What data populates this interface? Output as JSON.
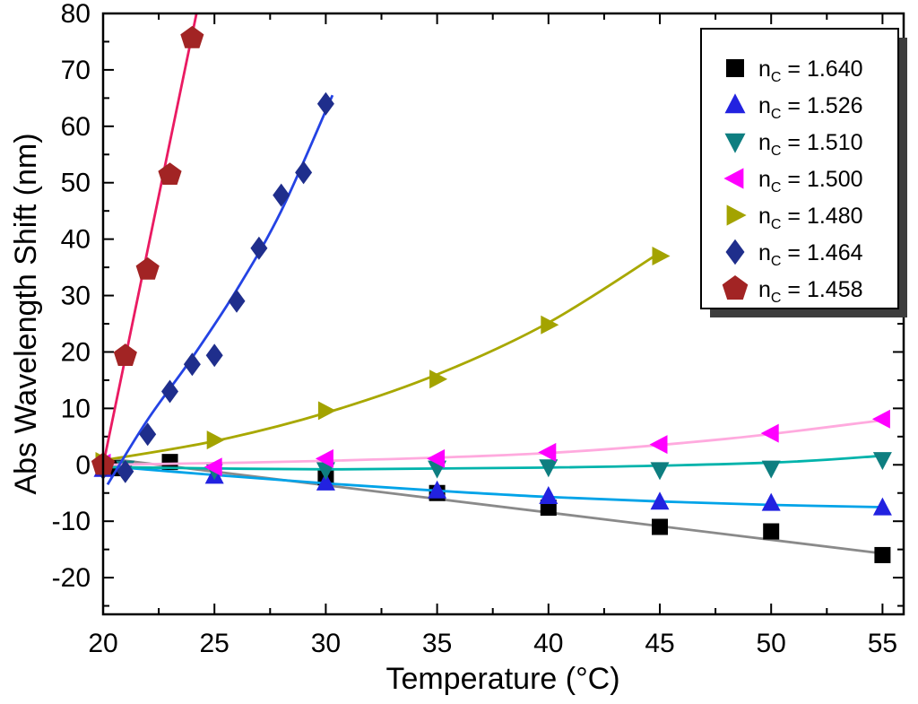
{
  "chart_data": {
    "type": "scatter",
    "title": "",
    "xlabel": "Temperature (°C)",
    "ylabel": "Abs Wavelength Shift (nm)",
    "xlim": [
      20,
      55.95
    ],
    "ylim": [
      -26.5,
      80
    ],
    "x_ticks": [
      20,
      25,
      30,
      35,
      40,
      45,
      50,
      55
    ],
    "y_ticks": [
      -20,
      -10,
      0,
      10,
      20,
      30,
      40,
      50,
      60,
      70,
      80
    ],
    "grid": false,
    "legend_position": "top-right",
    "frame_color": "#000000",
    "legend_shadow_color": "#3d3d3d",
    "series": [
      {
        "value": "1.640",
        "label": "n_C = 1.640",
        "marker": "square",
        "marker_size": 9,
        "marker_color": "#000000",
        "line_color": "#8a8a8a",
        "points": [
          [
            20.5,
            -0.6
          ],
          [
            23,
            0.5
          ],
          [
            30,
            -2.2
          ],
          [
            35,
            -5.0
          ],
          [
            40,
            -7.6
          ],
          [
            45,
            -11.0
          ],
          [
            50,
            -11.8
          ],
          [
            55,
            -16.0
          ]
        ],
        "line": [
          [
            20,
            1.2
          ],
          [
            55,
            -15.7
          ]
        ]
      },
      {
        "value": "1.526",
        "label": "n_C = 1.526",
        "marker": "triangle-up",
        "marker_size": 10,
        "marker_color": "#2222e0",
        "line_color": "#00a3e8",
        "points": [
          [
            20,
            -0.8
          ],
          [
            25,
            -2.0
          ],
          [
            30,
            -3.2
          ],
          [
            35,
            -4.6
          ],
          [
            40,
            -5.6
          ],
          [
            45,
            -6.6
          ],
          [
            50,
            -6.8
          ],
          [
            55,
            -7.6
          ]
        ],
        "line": [
          [
            20,
            -0.2
          ],
          [
            25,
            -1.8
          ],
          [
            30,
            -3.3
          ],
          [
            35,
            -4.6
          ],
          [
            40,
            -5.7
          ],
          [
            45,
            -6.5
          ],
          [
            50,
            -7.1
          ],
          [
            55,
            -7.5
          ]
        ]
      },
      {
        "value": "1.510",
        "label": "n_C = 1.510",
        "marker": "triangle-down",
        "marker_size": 10,
        "marker_color": "#0e7e80",
        "line_color": "#00b3ab",
        "points": [
          [
            20,
            -0.6
          ],
          [
            21,
            -0.6
          ],
          [
            25,
            -0.9
          ],
          [
            30,
            -0.9
          ],
          [
            35,
            -0.6
          ],
          [
            40,
            -0.4
          ],
          [
            45,
            -0.9
          ],
          [
            50,
            -0.6
          ],
          [
            55,
            0.9
          ]
        ],
        "line": [
          [
            20,
            -0.4
          ],
          [
            30,
            -0.8
          ],
          [
            40,
            -0.5
          ],
          [
            50,
            0.4
          ],
          [
            55,
            1.6
          ]
        ]
      },
      {
        "value": "1.500",
        "label": "n_C = 1.500",
        "marker": "triangle-left",
        "marker_size": 10,
        "marker_color": "#ff00ff",
        "line_color": "#ffaade",
        "points": [
          [
            20,
            0.3
          ],
          [
            25,
            -0.4
          ],
          [
            30,
            1.1
          ],
          [
            35,
            1.1
          ],
          [
            40,
            2.2
          ],
          [
            45,
            3.6
          ],
          [
            50,
            5.6
          ],
          [
            55,
            8.1
          ]
        ],
        "line": [
          [
            20,
            0.0
          ],
          [
            30,
            0.7
          ],
          [
            40,
            2.1
          ],
          [
            48,
            4.6
          ],
          [
            55,
            7.9
          ]
        ]
      },
      {
        "value": "1.480",
        "label": "n_C = 1.480",
        "marker": "triangle-right",
        "marker_size": 10,
        "marker_color": "#a3a300",
        "line_color": "#a8a800",
        "points": [
          [
            20,
            0.6
          ],
          [
            25,
            4.4
          ],
          [
            30,
            9.6
          ],
          [
            35,
            15.2
          ],
          [
            40,
            24.8
          ],
          [
            45,
            37.0
          ]
        ],
        "line": [
          [
            20,
            0.8
          ],
          [
            25,
            4.2
          ],
          [
            30,
            9.2
          ],
          [
            35,
            16.0
          ],
          [
            40,
            25.2
          ],
          [
            45,
            37.6
          ]
        ]
      },
      {
        "value": "1.464",
        "label": "n_C = 1.464",
        "marker": "diamond",
        "marker_size": 10,
        "marker_color": "#1f2e8c",
        "line_color": "#2443e4",
        "points": [
          [
            20,
            -0.6
          ],
          [
            21,
            -1.2
          ],
          [
            22,
            5.4
          ],
          [
            23,
            13.0
          ],
          [
            24,
            17.8
          ],
          [
            25,
            19.4
          ],
          [
            26,
            29.0
          ],
          [
            27,
            38.4
          ],
          [
            28,
            47.8
          ],
          [
            29,
            51.8
          ],
          [
            30,
            64.0
          ]
        ],
        "line": [
          [
            20.2,
            -3.5
          ],
          [
            22,
            8.0
          ],
          [
            24,
            19.0
          ],
          [
            26,
            31.0
          ],
          [
            28,
            45.0
          ],
          [
            30.3,
            65.5
          ]
        ]
      },
      {
        "value": "1.458",
        "label": "n_C = 1.458",
        "marker": "pentagon",
        "marker_size": 11,
        "marker_color": "#a22424",
        "line_color": "#ea1a62",
        "points": [
          [
            20,
            0.0
          ],
          [
            21,
            19.3
          ],
          [
            22,
            34.6
          ],
          [
            23,
            51.4
          ],
          [
            24,
            75.6
          ]
        ],
        "line": [
          [
            19.9,
            -2.0
          ],
          [
            24.35,
            83.0
          ]
        ]
      }
    ]
  }
}
